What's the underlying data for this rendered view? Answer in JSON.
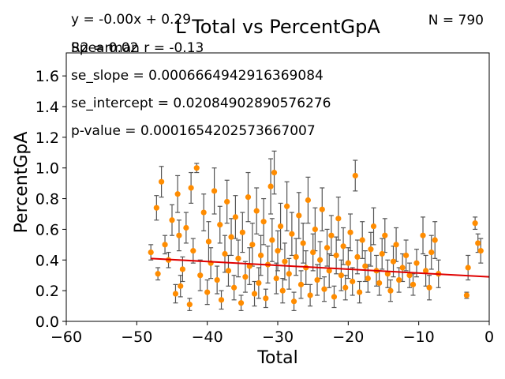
{
  "chart_data": {
    "type": "scatter",
    "title": "L Total vs PercentGpA",
    "xlabel": "Total",
    "ylabel": "PercentGpA",
    "xlim": [
      -60,
      0
    ],
    "ylim": [
      0.0,
      1.75
    ],
    "xticks": [
      "−60",
      "−50",
      "−40",
      "−30",
      "−20",
      "−10",
      "0"
    ],
    "xtick_values": [
      -60,
      -50,
      -40,
      -30,
      -20,
      -10,
      0
    ],
    "yticks": [
      "0.0",
      "0.2",
      "0.4",
      "0.6",
      "0.8",
      "1.0",
      "1.2",
      "1.4",
      "1.6"
    ],
    "ytick_values": [
      0.0,
      0.2,
      0.4,
      0.6,
      0.8,
      1.0,
      1.2,
      1.4,
      1.6
    ],
    "grid": false,
    "annotations": {
      "equation": "y = -0.00x + 0.29",
      "r2": "R2 = 0.02",
      "spearman": "Spearman r = -0.13",
      "n": "N = 790",
      "se_slope": "se_slope = 0.0006664942916369084",
      "se_intercept": "se_intercept = 0.02084902890576276",
      "p_value": "p-value = 0.0001654202573667007"
    },
    "fit_line": {
      "x": [
        -48,
        0
      ],
      "y": [
        0.41,
        0.29
      ],
      "color": "#e00000"
    },
    "marker_color": "#ff8c00",
    "errorbar_color": "#555555",
    "series": [
      {
        "points": [
          {
            "x": -48,
            "y": 0.45,
            "e": 0.05
          },
          {
            "x": -47.2,
            "y": 0.74,
            "e": 0.08
          },
          {
            "x": -47,
            "y": 0.31,
            "e": 0.04
          },
          {
            "x": -46.5,
            "y": 0.91,
            "e": 0.1
          },
          {
            "x": -46,
            "y": 0.5,
            "e": 0.06
          },
          {
            "x": -45.5,
            "y": 0.4,
            "e": 0.05
          },
          {
            "x": -45,
            "y": 0.66,
            "e": 0.1
          },
          {
            "x": -44.5,
            "y": 0.18,
            "e": 0.06
          },
          {
            "x": -44.2,
            "y": 0.83,
            "e": 0.12
          },
          {
            "x": -44,
            "y": 0.56,
            "e": 0.1
          },
          {
            "x": -43.8,
            "y": 0.23,
            "e": 0.07
          },
          {
            "x": -43.5,
            "y": 0.34,
            "e": 0.08
          },
          {
            "x": -43,
            "y": 0.61,
            "e": 0.1
          },
          {
            "x": -42.5,
            "y": 0.11,
            "e": 0.04
          },
          {
            "x": -42.3,
            "y": 0.87,
            "e": 0.1
          },
          {
            "x": -42,
            "y": 0.46,
            "e": 0.08
          },
          {
            "x": -41.5,
            "y": 1.0,
            "e": 0.03
          },
          {
            "x": -41,
            "y": 0.3,
            "e": 0.1
          },
          {
            "x": -40.5,
            "y": 0.71,
            "e": 0.12
          },
          {
            "x": -40,
            "y": 0.19,
            "e": 0.08
          },
          {
            "x": -39.8,
            "y": 0.52,
            "e": 0.13
          },
          {
            "x": -39.5,
            "y": 0.38,
            "e": 0.1
          },
          {
            "x": -39,
            "y": 0.85,
            "e": 0.15
          },
          {
            "x": -38.6,
            "y": 0.27,
            "e": 0.09
          },
          {
            "x": -38.2,
            "y": 0.63,
            "e": 0.12
          },
          {
            "x": -38,
            "y": 0.14,
            "e": 0.06
          },
          {
            "x": -37.5,
            "y": 0.44,
            "e": 0.12
          },
          {
            "x": -37.2,
            "y": 0.78,
            "e": 0.14
          },
          {
            "x": -37,
            "y": 0.33,
            "e": 0.1
          },
          {
            "x": -36.6,
            "y": 0.55,
            "e": 0.12
          },
          {
            "x": -36.2,
            "y": 0.22,
            "e": 0.08
          },
          {
            "x": -36,
            "y": 0.68,
            "e": 0.14
          },
          {
            "x": -35.6,
            "y": 0.41,
            "e": 0.12
          },
          {
            "x": -35.2,
            "y": 0.12,
            "e": 0.05
          },
          {
            "x": -35,
            "y": 0.58,
            "e": 0.13
          },
          {
            "x": -34.6,
            "y": 0.29,
            "e": 0.1
          },
          {
            "x": -34.2,
            "y": 0.81,
            "e": 0.16
          },
          {
            "x": -34,
            "y": 0.36,
            "e": 0.12
          },
          {
            "x": -33.6,
            "y": 0.5,
            "e": 0.14
          },
          {
            "x": -33.3,
            "y": 0.18,
            "e": 0.08
          },
          {
            "x": -33,
            "y": 0.72,
            "e": 0.15
          },
          {
            "x": -32.7,
            "y": 0.25,
            "e": 0.1
          },
          {
            "x": -32.4,
            "y": 0.43,
            "e": 0.13
          },
          {
            "x": -32,
            "y": 0.65,
            "e": 0.15
          },
          {
            "x": -31.7,
            "y": 0.15,
            "e": 0.06
          },
          {
            "x": -31.4,
            "y": 0.37,
            "e": 0.12
          },
          {
            "x": -31,
            "y": 0.88,
            "e": 0.18
          },
          {
            "x": -30.8,
            "y": 0.53,
            "e": 0.14
          },
          {
            "x": -30.5,
            "y": 0.97,
            "e": 0.14
          },
          {
            "x": -30.2,
            "y": 0.28,
            "e": 0.1
          },
          {
            "x": -30,
            "y": 0.46,
            "e": 0.13
          },
          {
            "x": -29.6,
            "y": 0.62,
            "e": 0.15
          },
          {
            "x": -29.3,
            "y": 0.2,
            "e": 0.08
          },
          {
            "x": -29,
            "y": 0.39,
            "e": 0.12
          },
          {
            "x": -28.7,
            "y": 0.75,
            "e": 0.16
          },
          {
            "x": -28.4,
            "y": 0.31,
            "e": 0.1
          },
          {
            "x": -28,
            "y": 0.57,
            "e": 0.14
          },
          {
            "x": -27.7,
            "y": 0.13,
            "e": 0.06
          },
          {
            "x": -27.4,
            "y": 0.42,
            "e": 0.12
          },
          {
            "x": -27,
            "y": 0.69,
            "e": 0.15
          },
          {
            "x": -26.7,
            "y": 0.24,
            "e": 0.09
          },
          {
            "x": -26.4,
            "y": 0.51,
            "e": 0.13
          },
          {
            "x": -26,
            "y": 0.35,
            "e": 0.11
          },
          {
            "x": -25.7,
            "y": 0.79,
            "e": 0.15
          },
          {
            "x": -25.4,
            "y": 0.17,
            "e": 0.07
          },
          {
            "x": -25,
            "y": 0.45,
            "e": 0.12
          },
          {
            "x": -24.7,
            "y": 0.6,
            "e": 0.14
          },
          {
            "x": -24.4,
            "y": 0.27,
            "e": 0.1
          },
          {
            "x": -24,
            "y": 0.4,
            "e": 0.12
          },
          {
            "x": -23.7,
            "y": 0.73,
            "e": 0.14
          },
          {
            "x": -23.4,
            "y": 0.21,
            "e": 0.08
          },
          {
            "x": -23,
            "y": 0.48,
            "e": 0.12
          },
          {
            "x": -22.7,
            "y": 0.33,
            "e": 0.11
          },
          {
            "x": -22.4,
            "y": 0.56,
            "e": 0.13
          },
          {
            "x": -22,
            "y": 0.16,
            "e": 0.07
          },
          {
            "x": -21.7,
            "y": 0.43,
            "e": 0.12
          },
          {
            "x": -21.4,
            "y": 0.67,
            "e": 0.14
          },
          {
            "x": -21,
            "y": 0.3,
            "e": 0.1
          },
          {
            "x": -20.7,
            "y": 0.49,
            "e": 0.12
          },
          {
            "x": -20.4,
            "y": 0.22,
            "e": 0.08
          },
          {
            "x": -20,
            "y": 0.38,
            "e": 0.1
          },
          {
            "x": -19.7,
            "y": 0.58,
            "e": 0.12
          },
          {
            "x": -19.4,
            "y": 0.26,
            "e": 0.09
          },
          {
            "x": -19,
            "y": 0.95,
            "e": 0.1
          },
          {
            "x": -18.7,
            "y": 0.42,
            "e": 0.11
          },
          {
            "x": -18.4,
            "y": 0.19,
            "e": 0.07
          },
          {
            "x": -18,
            "y": 0.53,
            "e": 0.12
          },
          {
            "x": -17.6,
            "y": 0.36,
            "e": 0.1
          },
          {
            "x": -17.2,
            "y": 0.28,
            "e": 0.09
          },
          {
            "x": -16.8,
            "y": 0.47,
            "e": 0.11
          },
          {
            "x": -16.4,
            "y": 0.62,
            "e": 0.12
          },
          {
            "x": -16,
            "y": 0.33,
            "e": 0.1
          },
          {
            "x": -15.6,
            "y": 0.25,
            "e": 0.08
          },
          {
            "x": -15.2,
            "y": 0.44,
            "e": 0.1
          },
          {
            "x": -14.8,
            "y": 0.56,
            "e": 0.11
          },
          {
            "x": -14.4,
            "y": 0.31,
            "e": 0.09
          },
          {
            "x": -14,
            "y": 0.2,
            "e": 0.07
          },
          {
            "x": -13.6,
            "y": 0.39,
            "e": 0.1
          },
          {
            "x": -13.2,
            "y": 0.5,
            "e": 0.11
          },
          {
            "x": -12.8,
            "y": 0.27,
            "e": 0.08
          },
          {
            "x": -12.3,
            "y": 0.35,
            "e": 0.09
          },
          {
            "x": -11.8,
            "y": 0.43,
            "e": 0.1
          },
          {
            "x": -11.3,
            "y": 0.3,
            "e": 0.08
          },
          {
            "x": -10.8,
            "y": 0.24,
            "e": 0.07
          },
          {
            "x": -10.3,
            "y": 0.38,
            "e": 0.09
          },
          {
            "x": -9.4,
            "y": 0.56,
            "e": 0.12
          },
          {
            "x": -9,
            "y": 0.33,
            "e": 0.1
          },
          {
            "x": -8.5,
            "y": 0.22,
            "e": 0.08
          },
          {
            "x": -8.2,
            "y": 0.45,
            "e": 0.11
          },
          {
            "x": -7.7,
            "y": 0.53,
            "e": 0.12
          },
          {
            "x": -7.2,
            "y": 0.31,
            "e": 0.09
          },
          {
            "x": -3.2,
            "y": 0.17,
            "e": 0.02
          },
          {
            "x": -3,
            "y": 0.35,
            "e": 0.08
          },
          {
            "x": -2,
            "y": 0.64,
            "e": 0.04
          },
          {
            "x": -1.6,
            "y": 0.51,
            "e": 0.06
          },
          {
            "x": -1.2,
            "y": 0.46,
            "e": 0.08
          }
        ]
      }
    ]
  }
}
